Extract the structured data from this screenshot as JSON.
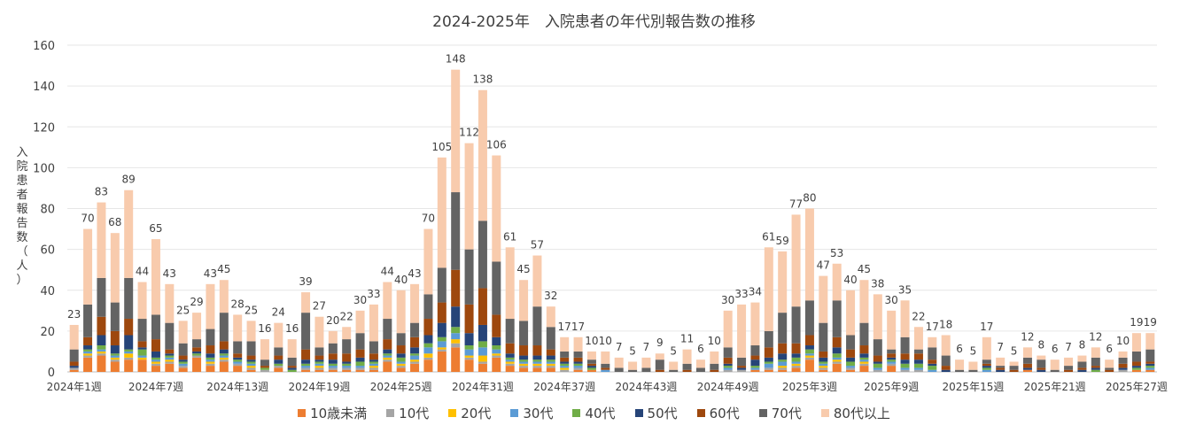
{
  "chart_data": {
    "type": "bar",
    "stacked": true,
    "title": "2024-2025年　入院患者の年代別報告数の推移",
    "xlabel": "",
    "ylabel": "入院患者報告数（人）",
    "ylim": [
      0,
      160
    ],
    "yticks": [
      0,
      20,
      40,
      60,
      80,
      100,
      120,
      140,
      160
    ],
    "grid": true,
    "legend_position": "bottom",
    "x_tick_labels": [
      "2024年1週",
      "2024年7週",
      "2024年13週",
      "2024年19週",
      "2024年25週",
      "2024年31週",
      "2024年37週",
      "2024年43週",
      "2024年49週",
      "2025年3週",
      "2025年9週",
      "2025年15週",
      "2025年21週",
      "2025年27週"
    ],
    "x_tick_every": 6,
    "totals": [
      23,
      70,
      83,
      68,
      89,
      44,
      65,
      43,
      25,
      29,
      43,
      45,
      28,
      25,
      16,
      24,
      16,
      39,
      27,
      20,
      22,
      30,
      33,
      44,
      40,
      43,
      70,
      105,
      148,
      112,
      138,
      106,
      61,
      45,
      57,
      32,
      17,
      17,
      10,
      10,
      7,
      5,
      7,
      9,
      5,
      11,
      6,
      10,
      30,
      33,
      34,
      61,
      59,
      77,
      80,
      47,
      53,
      40,
      45,
      38,
      30,
      35,
      22,
      17,
      18,
      6,
      5,
      17,
      7,
      5,
      12,
      8,
      6,
      7,
      8,
      12,
      6,
      10,
      19,
      19
    ],
    "series": [
      {
        "name": "10歳未満",
        "color": "#ED7D31",
        "values": [
          1,
          7,
          8,
          5,
          6,
          6,
          3,
          4,
          2,
          7,
          3,
          5,
          3,
          1,
          0,
          2,
          0,
          1,
          1,
          1,
          1,
          1,
          1,
          5,
          2,
          4,
          6,
          10,
          12,
          6,
          4,
          7,
          3,
          2,
          2,
          2,
          0,
          1,
          1,
          0,
          0,
          0,
          0,
          0,
          0,
          0,
          0,
          0,
          0,
          0,
          1,
          1,
          1,
          2,
          6,
          1,
          4,
          1,
          3,
          0,
          3,
          0,
          0,
          0,
          0,
          0,
          0,
          0,
          0,
          0,
          1,
          0,
          0,
          0,
          0,
          0,
          0,
          0,
          1,
          1
        ]
      },
      {
        "name": "10代",
        "color": "#A5A5A5",
        "values": [
          1,
          1,
          1,
          1,
          1,
          0,
          1,
          1,
          1,
          1,
          1,
          1,
          1,
          1,
          1,
          1,
          0,
          1,
          1,
          1,
          1,
          1,
          1,
          1,
          1,
          1,
          1,
          1,
          2,
          1,
          1,
          1,
          1,
          1,
          1,
          1,
          1,
          1,
          0,
          0,
          0,
          0,
          0,
          0,
          0,
          0,
          0,
          0,
          1,
          1,
          0,
          1,
          1,
          1,
          1,
          1,
          1,
          1,
          1,
          1,
          1,
          1,
          1,
          0,
          0,
          0,
          0,
          0,
          0,
          0,
          0,
          0,
          0,
          0,
          0,
          0,
          0,
          1,
          0,
          0
        ]
      },
      {
        "name": "20代",
        "color": "#FFC000",
        "values": [
          0,
          1,
          1,
          1,
          2,
          1,
          1,
          1,
          0,
          0,
          1,
          1,
          0,
          1,
          0,
          0,
          0,
          0,
          1,
          0,
          0,
          0,
          1,
          1,
          1,
          1,
          2,
          1,
          2,
          1,
          3,
          1,
          1,
          1,
          1,
          1,
          1,
          0,
          0,
          0,
          0,
          0,
          0,
          0,
          0,
          0,
          0,
          0,
          0,
          0,
          0,
          0,
          1,
          1,
          1,
          1,
          1,
          0,
          1,
          0,
          0,
          0,
          0,
          0,
          0,
          0,
          0,
          0,
          0,
          0,
          0,
          0,
          0,
          0,
          0,
          0,
          0,
          0,
          0,
          0
        ]
      },
      {
        "name": "30代",
        "color": "#5B9BD5",
        "values": [
          0,
          1,
          1,
          1,
          1,
          1,
          1,
          1,
          1,
          0,
          1,
          1,
          1,
          1,
          0,
          0,
          0,
          1,
          1,
          1,
          1,
          1,
          1,
          1,
          1,
          2,
          3,
          3,
          3,
          3,
          4,
          2,
          1,
          1,
          1,
          1,
          1,
          1,
          0,
          1,
          0,
          0,
          0,
          0,
          0,
          0,
          0,
          0,
          1,
          0,
          1,
          2,
          2,
          1,
          1,
          1,
          1,
          1,
          1,
          1,
          1,
          1,
          1,
          1,
          0,
          0,
          0,
          1,
          0,
          0,
          0,
          0,
          0,
          0,
          0,
          0,
          0,
          0,
          0,
          1
        ]
      },
      {
        "name": "40代",
        "color": "#70AD47",
        "values": [
          0,
          1,
          2,
          1,
          1,
          3,
          1,
          1,
          1,
          1,
          1,
          1,
          1,
          1,
          1,
          1,
          1,
          1,
          1,
          1,
          1,
          2,
          1,
          1,
          2,
          1,
          2,
          2,
          3,
          2,
          3,
          2,
          1,
          1,
          1,
          1,
          1,
          1,
          1,
          0,
          0,
          0,
          0,
          0,
          0,
          0,
          0,
          0,
          1,
          0,
          1,
          1,
          1,
          2,
          2,
          1,
          2,
          2,
          1,
          2,
          1,
          2,
          2,
          2,
          0,
          0,
          0,
          1,
          0,
          0,
          0,
          0,
          0,
          0,
          0,
          1,
          0,
          0,
          1,
          1
        ]
      },
      {
        "name": "50代",
        "color": "#264478",
        "values": [
          1,
          2,
          5,
          4,
          7,
          1,
          3,
          1,
          1,
          1,
          2,
          2,
          1,
          1,
          0,
          2,
          1,
          2,
          1,
          2,
          1,
          2,
          1,
          2,
          2,
          3,
          4,
          7,
          10,
          6,
          8,
          4,
          2,
          2,
          2,
          2,
          1,
          1,
          1,
          0,
          0,
          0,
          0,
          0,
          0,
          0,
          0,
          0,
          1,
          1,
          3,
          2,
          3,
          2,
          2,
          2,
          3,
          2,
          2,
          1,
          1,
          2,
          2,
          1,
          1,
          0,
          0,
          1,
          1,
          0,
          1,
          1,
          0,
          0,
          1,
          1,
          0,
          1,
          1,
          1
        ]
      },
      {
        "name": "60代",
        "color": "#9E480E",
        "values": [
          2,
          4,
          9,
          7,
          8,
          3,
          6,
          2,
          2,
          2,
          4,
          4,
          2,
          2,
          1,
          2,
          1,
          5,
          2,
          3,
          4,
          4,
          3,
          5,
          4,
          5,
          8,
          10,
          18,
          14,
          18,
          11,
          5,
          5,
          5,
          3,
          2,
          2,
          1,
          1,
          0,
          0,
          0,
          1,
          0,
          1,
          0,
          1,
          3,
          1,
          2,
          5,
          5,
          5,
          5,
          3,
          5,
          4,
          4,
          3,
          2,
          3,
          3,
          2,
          2,
          0,
          0,
          1,
          1,
          1,
          2,
          1,
          0,
          1,
          1,
          1,
          1,
          2,
          2,
          1
        ]
      },
      {
        "name": "70代",
        "color": "#636363",
        "values": [
          6,
          16,
          19,
          14,
          20,
          11,
          12,
          13,
          6,
          4,
          8,
          14,
          6,
          7,
          3,
          4,
          4,
          18,
          4,
          5,
          7,
          8,
          6,
          10,
          6,
          7,
          12,
          17,
          38,
          27,
          33,
          26,
          12,
          12,
          19,
          11,
          3,
          3,
          2,
          2,
          2,
          1,
          2,
          5,
          1,
          3,
          2,
          3,
          5,
          4,
          5,
          8,
          15,
          18,
          17,
          14,
          18,
          7,
          11,
          8,
          2,
          8,
          2,
          6,
          5,
          1,
          1,
          2,
          1,
          2,
          3,
          4,
          1,
          2,
          3,
          4,
          1,
          3,
          5,
          6
        ]
      },
      {
        "name": "80代以上",
        "color": "#F8CBAD",
        "values": [
          12,
          37,
          37,
          34,
          43,
          18,
          37,
          19,
          11,
          13,
          22,
          16,
          13,
          10,
          10,
          12,
          9,
          10,
          15,
          6,
          6,
          11,
          18,
          18,
          21,
          19,
          32,
          54,
          60,
          52,
          64,
          52,
          35,
          20,
          25,
          10,
          7,
          7,
          4,
          6,
          5,
          4,
          5,
          3,
          4,
          7,
          4,
          6,
          18,
          26,
          21,
          41,
          30,
          45,
          45,
          23,
          18,
          22,
          21,
          22,
          19,
          18,
          11,
          5,
          10,
          5,
          4,
          11,
          4,
          2,
          5,
          2,
          5,
          4,
          3,
          5,
          4,
          3,
          9,
          8
        ]
      }
    ]
  }
}
